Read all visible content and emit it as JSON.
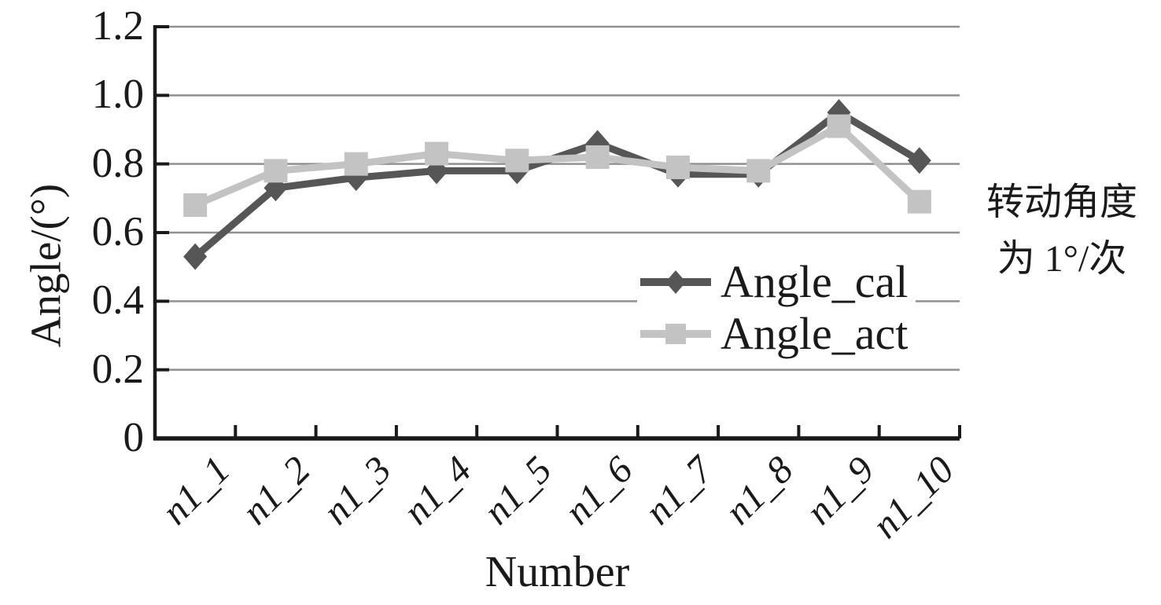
{
  "figure": {
    "background": "#ffffff"
  },
  "chart_data": {
    "type": "line",
    "title": "",
    "xlabel": "Number",
    "ylabel": "Angle/(°)",
    "ylim": [
      0,
      1.2
    ],
    "grid": true,
    "legend_position": "inside right-center",
    "ytick_labels": [
      "0",
      "0.2",
      "0.4",
      "0.6",
      "0.8",
      "1.0",
      "1.2"
    ],
    "ytick_values": [
      0,
      0.2,
      0.4,
      0.6,
      0.8,
      1.0,
      1.2
    ],
    "categories": [
      "n1_1",
      "n1_2",
      "n1_3",
      "n1_4",
      "n1_5",
      "n1_6",
      "n1_7",
      "n1_8",
      "n1_9",
      "n1_10"
    ],
    "series": [
      {
        "name": "Angle_cal",
        "marker": "diamond",
        "color": "#565656",
        "values": [
          0.53,
          0.73,
          0.76,
          0.78,
          0.78,
          0.86,
          0.77,
          0.77,
          0.95,
          0.81
        ]
      },
      {
        "name": "Angle_act",
        "marker": "square",
        "color": "#c3c3c3",
        "values": [
          0.68,
          0.78,
          0.8,
          0.83,
          0.81,
          0.82,
          0.79,
          0.78,
          0.91,
          0.69
        ]
      }
    ],
    "annotation_lines": [
      "转动角度",
      "为 1°/次"
    ],
    "colors": {
      "gridline": "#8f8f8f",
      "axis": "#1a1a1a",
      "text": "#1a1a1a"
    }
  }
}
